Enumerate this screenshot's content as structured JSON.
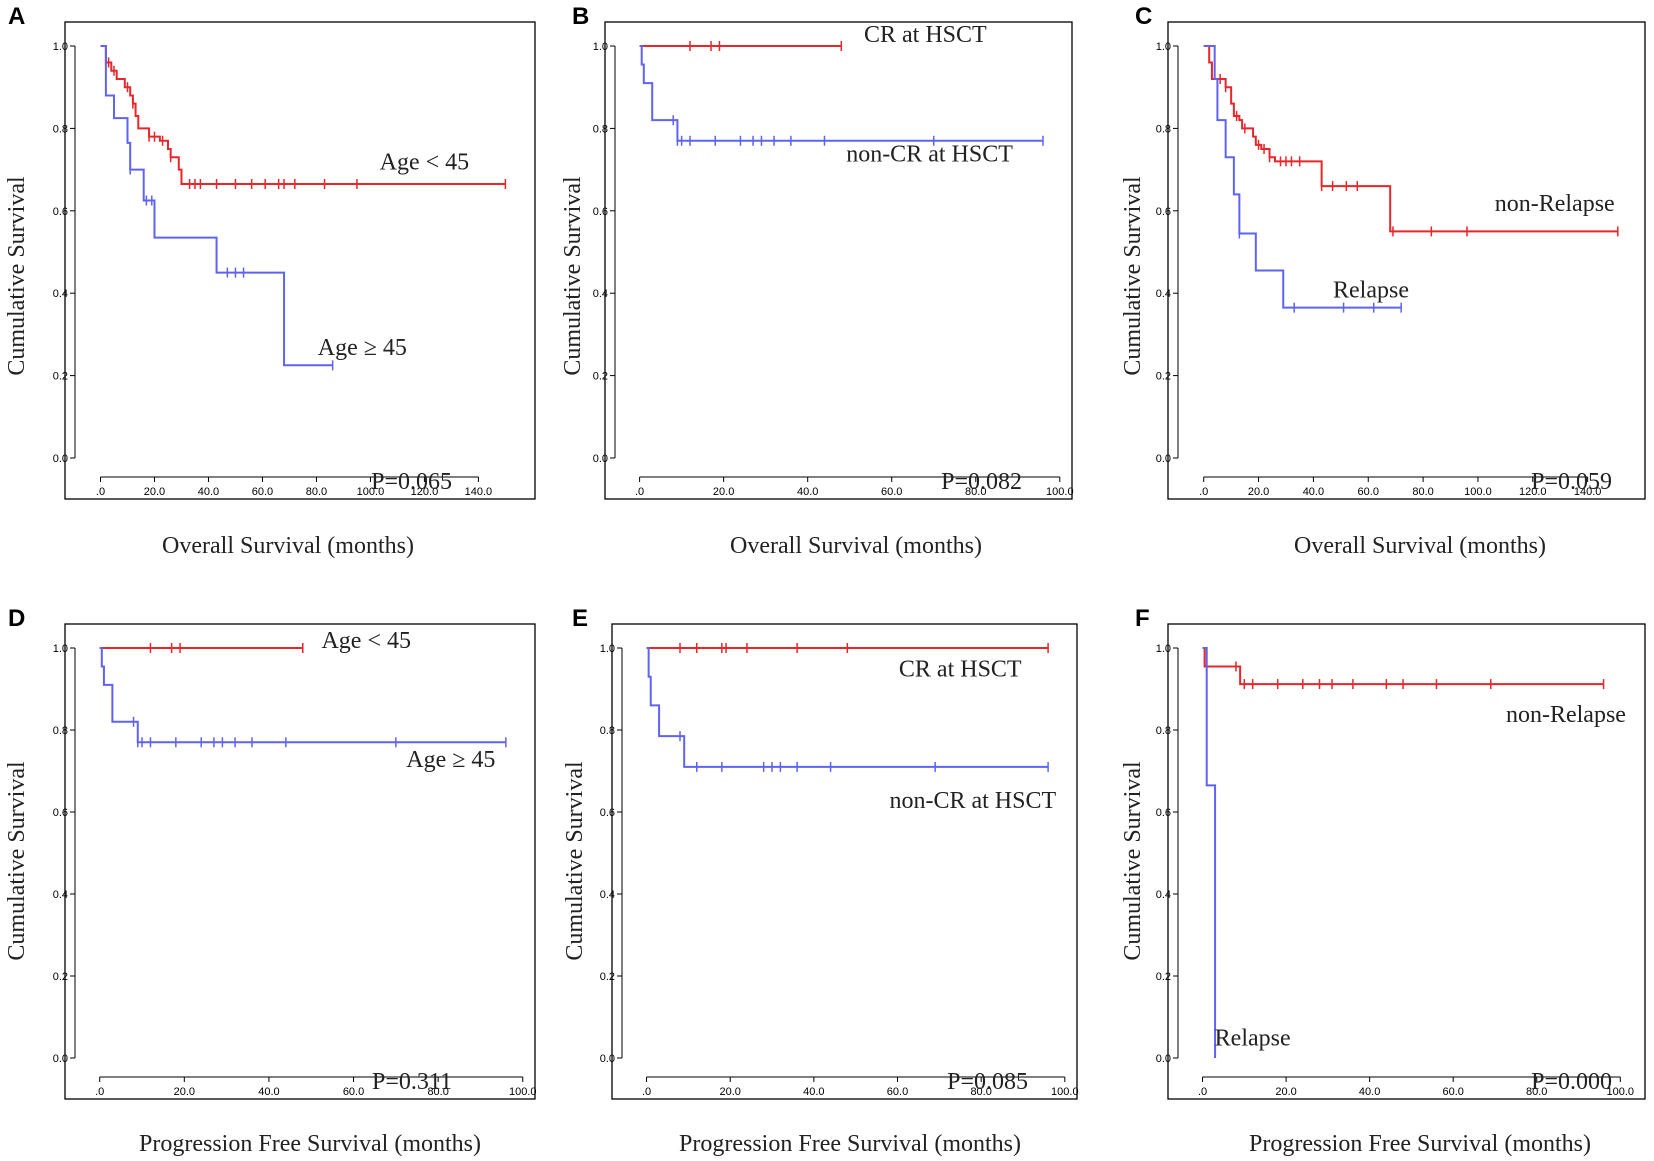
{
  "figure": {
    "colors": {
      "red": "#e8262b",
      "blue": "#5f63f2"
    }
  },
  "chart_data": [
    {
      "panel": "A",
      "type": "line",
      "xlabel": "Overall Survival (months)",
      "ylabel": "Cumulative Survival",
      "xlim": [
        -5,
        158
      ],
      "ylim": [
        0,
        1.0
      ],
      "xticks": [
        ".0",
        "20.0",
        "40.0",
        "60.0",
        "80.0",
        "100.0",
        "120.0",
        "140.0"
      ],
      "xtick_values": [
        0,
        20,
        40,
        60,
        80,
        100,
        120,
        140
      ],
      "yticks": [
        "0.0",
        "0.2",
        "0.4",
        "0.6",
        "0.8",
        "1.0"
      ],
      "yrange": [
        0.0,
        1.0
      ],
      "pvalue": "P=0.065",
      "series": [
        {
          "name": "Age < 45",
          "color": "red",
          "steps": [
            [
              0,
              1.0
            ],
            [
              2,
              0.96
            ],
            [
              4,
              0.94
            ],
            [
              6,
              0.92
            ],
            [
              9,
              0.9
            ],
            [
              11,
              0.88
            ],
            [
              12,
              0.86
            ],
            [
              13,
              0.83
            ],
            [
              14,
              0.8
            ],
            [
              18,
              0.78
            ],
            [
              22,
              0.77
            ],
            [
              25,
              0.75
            ],
            [
              26,
              0.73
            ],
            [
              29,
              0.7
            ],
            [
              30,
              0.665
            ]
          ],
          "end": 150,
          "censors": [
            3,
            5,
            10,
            12,
            18,
            20,
            23,
            26,
            33,
            35,
            37,
            43,
            50,
            56,
            61,
            66,
            68,
            72,
            83,
            95,
            150
          ]
        },
        {
          "name": "Age ≥ 45",
          "color": "blue",
          "steps": [
            [
              0,
              1.0
            ],
            [
              2,
              0.88
            ],
            [
              5,
              0.825
            ],
            [
              10,
              0.765
            ],
            [
              11,
              0.7
            ],
            [
              16,
              0.625
            ],
            [
              20,
              0.535
            ],
            [
              43,
              0.45
            ],
            [
              68,
              0.225
            ]
          ],
          "end": 86,
          "censors": [
            11,
            17,
            19,
            47,
            50,
            53,
            86
          ]
        }
      ],
      "labels": [
        {
          "text": "Age < 45",
          "x": 120,
          "y": 0.7
        },
        {
          "text": "Age ≥ 45",
          "x": 97,
          "y": 0.25
        }
      ]
    },
    {
      "panel": "B",
      "type": "line",
      "xlabel": "Overall Survival (months)",
      "ylabel": "Cumulative Survival",
      "xlim": [
        -3,
        101
      ],
      "ylim": [
        0,
        1.0
      ],
      "xticks": [
        ".0",
        "20.0",
        "40.0",
        "60.0",
        "80.0",
        "100.0"
      ],
      "xtick_values": [
        0,
        20,
        40,
        60,
        80,
        100
      ],
      "yticks": [
        "0.0",
        "0.2",
        "0.4",
        "0.6",
        "0.8",
        "1.0"
      ],
      "yrange": [
        0.0,
        1.0
      ],
      "pvalue": "P=0.082",
      "series": [
        {
          "name": "CR at HSCT",
          "color": "red",
          "steps": [
            [
              0,
              1.0
            ]
          ],
          "end": 48,
          "censors": [
            12,
            17,
            19,
            48
          ]
        },
        {
          "name": "non-CR at HSCT",
          "color": "blue",
          "steps": [
            [
              0,
              1.0
            ],
            [
              0.5,
              0.955
            ],
            [
              1,
              0.91
            ],
            [
              3,
              0.82
            ],
            [
              9,
              0.77
            ]
          ],
          "end": 96,
          "censors": [
            8,
            9,
            10,
            12,
            18,
            24,
            27,
            29,
            32,
            36,
            44,
            70,
            96
          ]
        }
      ],
      "labels": [
        {
          "text": "CR at HSCT",
          "x": 68,
          "y": 1.01
        },
        {
          "text": "non-CR at HSCT",
          "x": 69,
          "y": 0.72
        }
      ]
    },
    {
      "panel": "C",
      "type": "line",
      "xlabel": "Overall Survival (months)",
      "ylabel": "Cumulative Survival",
      "xlim": [
        -5,
        158
      ],
      "ylim": [
        0,
        1.0
      ],
      "xticks": [
        ".0",
        "20.0",
        "40.0",
        "60.0",
        "80.0",
        "100.0",
        "120.0",
        "140.0"
      ],
      "xtick_values": [
        0,
        20,
        40,
        60,
        80,
        100,
        120,
        140
      ],
      "yticks": [
        "0.0",
        "0.2",
        "0.4",
        "0.6",
        "0.8",
        "1.0"
      ],
      "yrange": [
        0.0,
        1.0
      ],
      "pvalue": "P=0.059",
      "series": [
        {
          "name": "non-Relapse",
          "color": "red",
          "steps": [
            [
              0,
              1.0
            ],
            [
              2,
              0.96
            ],
            [
              3,
              0.92
            ],
            [
              8,
              0.9
            ],
            [
              10,
              0.86
            ],
            [
              11,
              0.83
            ],
            [
              13,
              0.82
            ],
            [
              14,
              0.8
            ],
            [
              18,
              0.78
            ],
            [
              19,
              0.76
            ],
            [
              21,
              0.75
            ],
            [
              24,
              0.73
            ],
            [
              26,
              0.72
            ],
            [
              43,
              0.66
            ],
            [
              68,
              0.55
            ]
          ],
          "end": 151,
          "censors": [
            6,
            8,
            12,
            15,
            20,
            22,
            24,
            28,
            30,
            32,
            35,
            43,
            47,
            52,
            56,
            69,
            83,
            96,
            151
          ]
        },
        {
          "name": "Relapse",
          "color": "blue",
          "steps": [
            [
              0,
              1.0
            ],
            [
              4,
              0.92
            ],
            [
              5,
              0.82
            ],
            [
              8,
              0.73
            ],
            [
              11,
              0.64
            ],
            [
              13,
              0.545
            ],
            [
              19,
              0.455
            ],
            [
              29,
              0.365
            ]
          ],
          "end": 72,
          "censors": [
            13,
            33,
            51,
            62,
            72
          ]
        }
      ],
      "labels": [
        {
          "text": "non-Relapse",
          "x": 128,
          "y": 0.6
        },
        {
          "text": "Relapse",
          "x": 61,
          "y": 0.39
        }
      ]
    },
    {
      "panel": "D",
      "type": "line",
      "xlabel": "Progression Free Survival (months)",
      "ylabel": "Cumulative Survival",
      "xlim": [
        -3,
        101
      ],
      "ylim": [
        0,
        1.0
      ],
      "xticks": [
        ".0",
        "20.0",
        "40.0",
        "60.0",
        "80.0",
        "100.0"
      ],
      "xtick_values": [
        0,
        20,
        40,
        60,
        80,
        100
      ],
      "yticks": [
        "0.0",
        "0.2",
        "0.4",
        "0.6",
        "0.8",
        "1.0"
      ],
      "yrange": [
        0.0,
        1.0
      ],
      "pvalue": "P=0.311",
      "series": [
        {
          "name": "Age < 45",
          "color": "red",
          "steps": [
            [
              0,
              1.0
            ]
          ],
          "end": 48,
          "censors": [
            12,
            17,
            19,
            48
          ]
        },
        {
          "name": "Age ≥ 45",
          "color": "blue",
          "steps": [
            [
              0,
              1.0
            ],
            [
              0.5,
              0.955
            ],
            [
              1,
              0.91
            ],
            [
              3,
              0.82
            ],
            [
              9,
              0.77
            ]
          ],
          "end": 96,
          "censors": [
            8,
            9,
            10,
            12,
            18,
            24,
            27,
            29,
            32,
            36,
            44,
            70,
            96
          ]
        }
      ],
      "labels": [
        {
          "text": "Age < 45",
          "x": 63,
          "y": 1.0
        },
        {
          "text": "Age ≥ 45",
          "x": 83,
          "y": 0.71
        }
      ]
    },
    {
      "panel": "E",
      "type": "line",
      "xlabel": "Progression Free Survival (months)",
      "ylabel": "Cumulative Survival",
      "xlim": [
        -3,
        101
      ],
      "ylim": [
        0,
        1.0
      ],
      "xticks": [
        ".0",
        "20.0",
        "40.0",
        "60.0",
        "80.0",
        "100.0"
      ],
      "xtick_values": [
        0,
        20,
        40,
        60,
        80,
        100
      ],
      "yticks": [
        "0.0",
        "0.2",
        "0.4",
        "0.6",
        "0.8",
        "1.0"
      ],
      "yrange": [
        0.0,
        1.0
      ],
      "pvalue": "P=0.085",
      "series": [
        {
          "name": "CR at HSCT",
          "color": "red",
          "steps": [
            [
              0,
              1.0
            ]
          ],
          "end": 96,
          "censors": [
            8,
            12,
            18,
            19,
            24,
            36,
            48,
            96
          ]
        },
        {
          "name": "non-CR at HSCT",
          "color": "blue",
          "steps": [
            [
              0,
              1.0
            ],
            [
              0.5,
              0.93
            ],
            [
              1,
              0.86
            ],
            [
              3,
              0.785
            ],
            [
              9,
              0.71
            ]
          ],
          "end": 96,
          "censors": [
            8,
            12,
            18,
            28,
            30,
            32,
            36,
            44,
            69,
            96
          ]
        }
      ],
      "labels": [
        {
          "text": "CR at HSCT",
          "x": 75,
          "y": 0.93
        },
        {
          "text": "non-CR at HSCT",
          "x": 78,
          "y": 0.61
        }
      ]
    },
    {
      "panel": "F",
      "type": "line",
      "xlabel": "Progression Free Survival (months)",
      "ylabel": "Cumulative Survival",
      "xlim": [
        -3,
        104
      ],
      "ylim": [
        0,
        1.0
      ],
      "xticks": [
        ".0",
        "20.0",
        "40.0",
        "60.0",
        "80.0",
        "100.0"
      ],
      "xtick_values": [
        0,
        20,
        40,
        60,
        80,
        100
      ],
      "yticks": [
        "0.0",
        "0.2",
        "0.4",
        "0.6",
        "0.8",
        "1.0"
      ],
      "yrange": [
        0.0,
        1.0
      ],
      "pvalue": "P=0.000",
      "series": [
        {
          "name": "non-Relapse",
          "color": "red",
          "steps": [
            [
              0,
              1.0
            ],
            [
              0.5,
              0.955
            ],
            [
              9,
              0.912
            ]
          ],
          "end": 96,
          "censors": [
            8,
            10,
            12,
            18,
            24,
            28,
            31,
            36,
            44,
            48,
            56,
            69,
            96
          ]
        },
        {
          "name": "Relapse",
          "color": "blue",
          "steps": [
            [
              0,
              1.0
            ],
            [
              1,
              0.665
            ],
            [
              3,
              0.0
            ]
          ],
          "end": 3,
          "censors": []
        }
      ],
      "labels": [
        {
          "text": "non-Relapse",
          "x": 87,
          "y": 0.82
        },
        {
          "text": "Relapse",
          "x": 12,
          "y": 0.03
        }
      ]
    }
  ]
}
